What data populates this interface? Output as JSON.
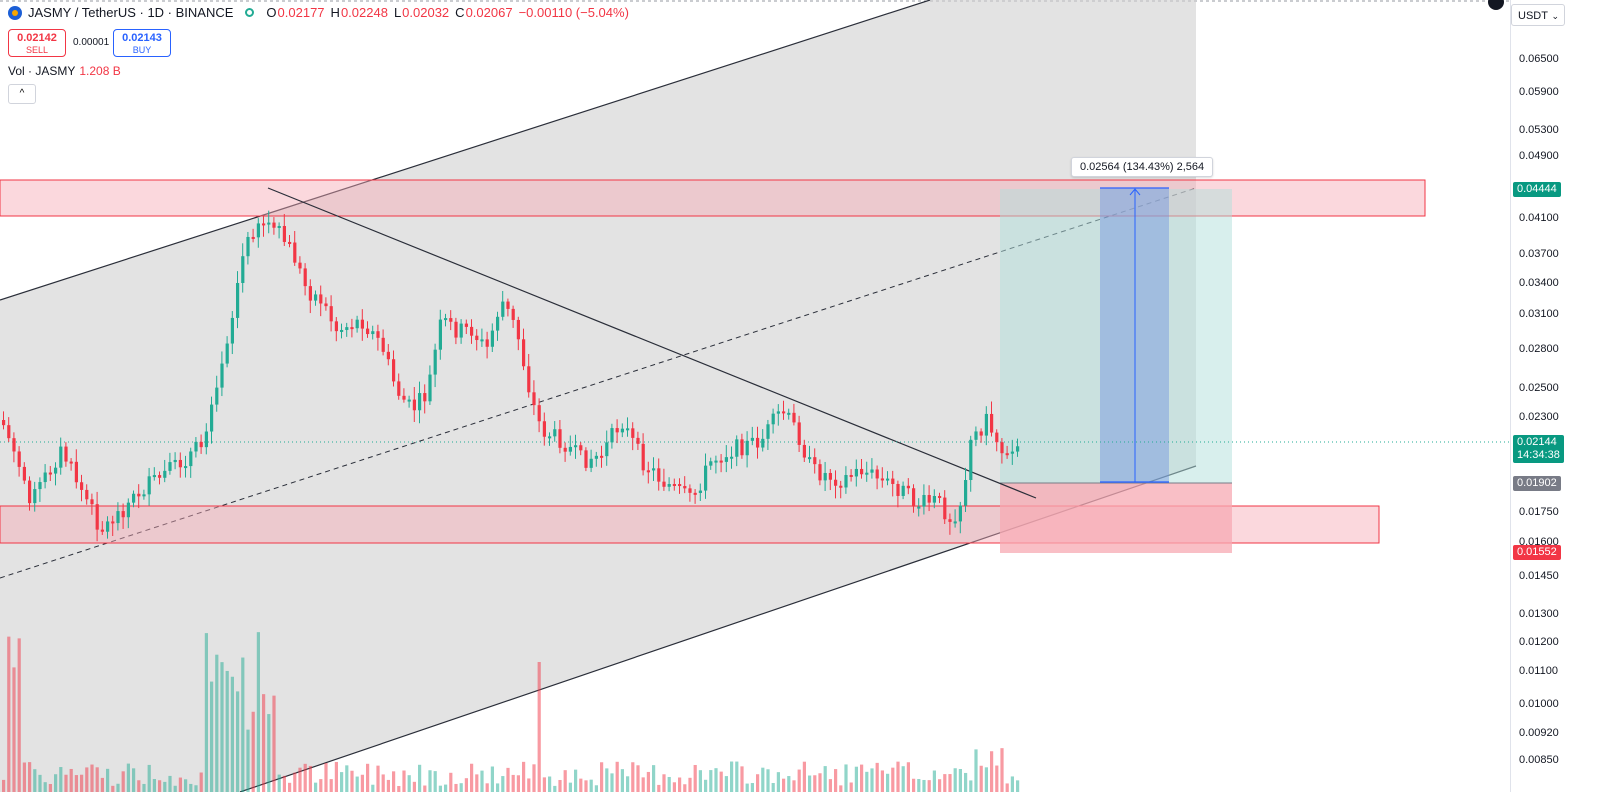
{
  "legend": {
    "symbol": "JASMY / TetherUS · 1D · BINANCE",
    "o_label": "O",
    "o_value": "0.02177",
    "h_label": "H",
    "h_value": "0.02248",
    "l_label": "L",
    "l_value": "0.02032",
    "c_label": "C",
    "c_value": "0.02067",
    "change": "−0.00110 (−5.04%)"
  },
  "trade": {
    "sell_price": "0.02142",
    "sell_label": "SELL",
    "spread": "0.00001",
    "buy_price": "0.02143",
    "buy_label": "BUY"
  },
  "volume": {
    "label": "Vol · JASMY",
    "value": "1.208 B"
  },
  "collapse_icon": "^",
  "measure_label": "0.02564 (134.43%) 2,564",
  "currency": {
    "value": "USDT",
    "chevron": "⌄"
  },
  "price_ticks": [
    "0.06500",
    "0.05900",
    "0.05300",
    "0.04900",
    "0.04100",
    "0.03700",
    "0.03400",
    "0.03100",
    "0.02800",
    "0.02500",
    "0.02300",
    "0.01750",
    "0.01600",
    "0.01450",
    "0.01300",
    "0.01200",
    "0.01100",
    "0.01000",
    "0.00920",
    "0.00850"
  ],
  "price_tags": {
    "target": "0.04444",
    "current": "0.02144",
    "countdown": "14:34:38",
    "entry": "0.01902",
    "stop": "0.01552"
  },
  "colors": {
    "up": "#22ab94",
    "down": "#f23645",
    "zone_fill": "#f7a9b3",
    "channel_fill": "#d8d8d8",
    "target_fill": "#b2dfdb",
    "measure_fill": "#7b9ee0"
  }
}
